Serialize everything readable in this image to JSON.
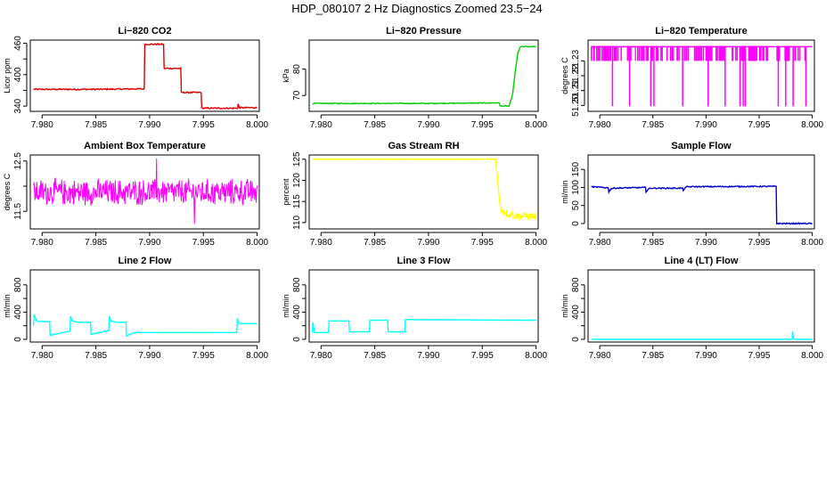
{
  "figure": {
    "title": "HDP_080107  2 Hz Diagnostics Zoomed 23.5−24"
  },
  "chart_data": [
    {
      "type": "line",
      "title": "Li−820 CO2",
      "ylabel": "Licor ppm",
      "color": "#dd0000",
      "xlim": [
        7.9789,
        8.0002
      ],
      "ylim": [
        330,
        466
      ],
      "xticks": [
        7.98,
        7.985,
        7.99,
        7.995,
        8.0
      ],
      "xtick_labels": [
        "7.980",
        "7.985",
        "7.990",
        "7.995",
        "8.000"
      ],
      "yticks": [
        340,
        370,
        400,
        430,
        460
      ],
      "ytick_labels": [
        "340",
        "",
        "400",
        "",
        "460"
      ],
      "x": [
        7.9792,
        7.98,
        7.985,
        7.9895,
        7.98955,
        7.9913,
        7.99135,
        7.9929,
        7.99295,
        7.9948,
        7.99485,
        7.997,
        7.9982,
        7.99822,
        7.99835,
        8.0
      ],
      "y": [
        372,
        372,
        372,
        373,
        458,
        458,
        412,
        412,
        366,
        366,
        336,
        336,
        336,
        344,
        337,
        337
      ],
      "noise": 1.2
    },
    {
      "type": "line",
      "title": "Li−820 Pressure",
      "ylabel": "kPa",
      "color": "#00cc00",
      "xlim": [
        7.9789,
        8.0002
      ],
      "ylim": [
        64,
        91
      ],
      "xticks": [
        7.98,
        7.985,
        7.99,
        7.995,
        8.0
      ],
      "xtick_labels": [
        "7.980",
        "7.985",
        "7.990",
        "7.995",
        "8.000"
      ],
      "yticks": [
        70,
        80
      ],
      "ytick_labels": [
        "70",
        "80"
      ],
      "x": [
        7.9792,
        7.99,
        7.9966,
        7.99665,
        7.9975,
        7.9978,
        7.9981,
        7.9983,
        7.99855,
        8.0
      ],
      "y": [
        67,
        67,
        67.2,
        66,
        66,
        70,
        80,
        86,
        88.5,
        88.5
      ],
      "noise": 0.15
    },
    {
      "type": "spikes",
      "title": "Li−820 Temperature",
      "ylabel": "degrees C",
      "color": "#ff00ff",
      "xlim": [
        7.9789,
        8.0002
      ],
      "ylim": [
        51.196,
        51.244
      ],
      "xticks": [
        7.98,
        7.985,
        7.99,
        7.995,
        8.0
      ],
      "xtick_labels": [
        "7.980",
        "7.985",
        "7.990",
        "7.995",
        "8.000"
      ],
      "yticks": [
        51.2,
        51.21,
        51.22,
        51.23
      ],
      "ytick_labels": [
        "51.20",
        "51.21",
        "51.22",
        "51.23"
      ],
      "baseline": 51.24,
      "dip_level": 51.23,
      "deep_level": 51.2,
      "deep_x": [
        7.9812,
        7.9828,
        7.9848,
        7.9851,
        7.9878,
        7.9902,
        7.9918,
        7.9932,
        7.9935,
        7.9937,
        7.9968,
        7.9975,
        7.9982,
        7.9994
      ],
      "n_dips": 180
    },
    {
      "type": "noise",
      "title": "Ambient Box Temperature",
      "ylabel": "degrees C",
      "color": "#ff00ff",
      "xlim": [
        7.9789,
        8.0002
      ],
      "ylim": [
        11.15,
        12.62
      ],
      "xticks": [
        7.98,
        7.985,
        7.99,
        7.995,
        8.0
      ],
      "xtick_labels": [
        "7.980",
        "7.985",
        "7.990",
        "7.995",
        "8.000"
      ],
      "yticks": [
        11.5,
        12.0,
        12.5
      ],
      "ytick_labels": [
        "11.5",
        "",
        "12.5"
      ],
      "center": 11.88,
      "amplitude": 0.27,
      "peaks": [
        12.55,
        11.25
      ],
      "n_points": 460
    },
    {
      "type": "line",
      "title": "Gas Stream RH",
      "ylabel": "percent",
      "color": "#ffff00",
      "xlim": [
        7.9789,
        8.0002
      ],
      "ylim": [
        108.5,
        126
      ],
      "xticks": [
        7.98,
        7.985,
        7.99,
        7.995,
        8.0
      ],
      "xtick_labels": [
        "7.980",
        "7.985",
        "7.990",
        "7.995",
        "8.000"
      ],
      "yticks": [
        110,
        115,
        120,
        125
      ],
      "ytick_labels": [
        "110",
        "115",
        "120",
        "125"
      ],
      "x": [
        7.9792,
        7.99,
        7.99625,
        7.9964,
        7.9966,
        7.9968,
        7.9975,
        7.9985,
        8.0
      ],
      "y": [
        125,
        125,
        125,
        121,
        115,
        113,
        112,
        111.5,
        111.5
      ],
      "noise": 0.9,
      "noise_after": 7.9966
    },
    {
      "type": "line",
      "title": "Sample Flow",
      "ylabel": "ml/min",
      "color": "#0000cc",
      "xlim": [
        7.9789,
        8.0002
      ],
      "ylim": [
        -15,
        190
      ],
      "xticks": [
        7.98,
        7.985,
        7.99,
        7.995,
        8.0
      ],
      "xtick_labels": [
        "7.980",
        "7.985",
        "7.990",
        "7.995",
        "8.000"
      ],
      "yticks": [
        0,
        50,
        100,
        150
      ],
      "ytick_labels": [
        "0",
        "50",
        "100",
        "150"
      ],
      "x": [
        7.9792,
        7.9808,
        7.98085,
        7.9811,
        7.98135,
        7.9843,
        7.98435,
        7.9846,
        7.98485,
        7.9878,
        7.98785,
        7.988,
        7.98825,
        7.9966,
        7.99665,
        8.0
      ],
      "y": [
        102,
        99,
        88,
        97,
        98,
        100,
        88,
        96,
        98,
        98,
        90,
        99,
        102,
        103,
        0,
        0
      ],
      "noise": 1.5
    },
    {
      "type": "line",
      "title": "Line 2 Flow",
      "ylabel": "ml/min",
      "color": "#00ffff",
      "xlim": [
        7.9789,
        8.0002
      ],
      "ylim": [
        -40,
        1020
      ],
      "xticks": [
        7.98,
        7.985,
        7.99,
        7.995,
        8.0
      ],
      "xtick_labels": [
        "7.980",
        "7.985",
        "7.990",
        "7.995",
        "8.000"
      ],
      "yticks": [
        0,
        200,
        400,
        600,
        800
      ],
      "ytick_labels": [
        "0",
        "400",
        "800"
      ],
      "ytick_label_values": [
        0,
        400,
        800
      ],
      "x": [
        7.9792,
        7.97925,
        7.9795,
        7.9799,
        7.9807,
        7.98075,
        7.9826,
        7.98265,
        7.9828,
        7.9833,
        7.9845,
        7.98455,
        7.9862,
        7.98625,
        7.9864,
        7.9869,
        7.9878,
        7.98785,
        7.9886,
        7.9981,
        7.99815,
        7.9984,
        8.0
      ],
      "y": [
        200,
        360,
        270,
        260,
        260,
        60,
        120,
        340,
        270,
        250,
        250,
        70,
        130,
        340,
        270,
        250,
        250,
        50,
        100,
        100,
        290,
        230,
        230
      ],
      "noise": 2
    },
    {
      "type": "line",
      "title": "Line 3 Flow",
      "ylabel": "ml/min",
      "color": "#00ffff",
      "xlim": [
        7.9789,
        8.0002
      ],
      "ylim": [
        -40,
        1020
      ],
      "xticks": [
        7.98,
        7.985,
        7.99,
        7.995,
        8.0
      ],
      "xtick_labels": [
        "7.980",
        "7.985",
        "7.990",
        "7.995",
        "8.000"
      ],
      "yticks": [
        0,
        200,
        400,
        600,
        800
      ],
      "ytick_labels": [
        "0",
        "400",
        "800"
      ],
      "ytick_label_values": [
        0,
        400,
        800
      ],
      "x": [
        7.9792,
        7.97925,
        7.9794,
        7.9807,
        7.98075,
        7.9826,
        7.98265,
        7.9845,
        7.98455,
        7.9862,
        7.98625,
        7.9878,
        7.98785,
        8.0
      ],
      "y": [
        100,
        250,
        100,
        100,
        270,
        270,
        110,
        110,
        280,
        280,
        110,
        110,
        290,
        280
      ],
      "noise": 2
    },
    {
      "type": "line",
      "title": "Line 4 (LT) Flow",
      "ylabel": "ml/min",
      "color": "#00ffff",
      "xlim": [
        7.9789,
        8.0002
      ],
      "ylim": [
        -40,
        1020
      ],
      "xticks": [
        7.98,
        7.985,
        7.99,
        7.995,
        8.0
      ],
      "xtick_labels": [
        "7.980",
        "7.985",
        "7.990",
        "7.995",
        "8.000"
      ],
      "yticks": [
        0,
        200,
        400,
        600,
        800
      ],
      "ytick_labels": [
        "0",
        "400",
        "800"
      ],
      "ytick_label_values": [
        0,
        400,
        800
      ],
      "x": [
        7.9792,
        7.9981,
        7.99815,
        7.9982,
        7.9983,
        8.0
      ],
      "y": [
        0,
        0,
        120,
        20,
        0,
        0
      ],
      "noise": 0
    }
  ]
}
